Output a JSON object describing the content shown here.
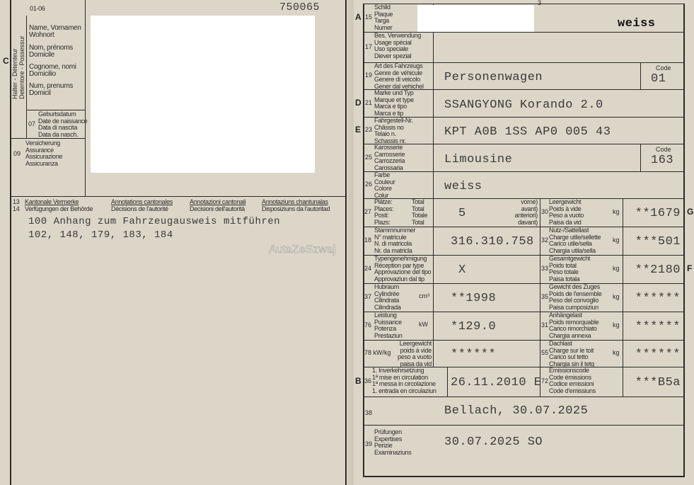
{
  "left": {
    "form_code": "01-06",
    "serial_partial": "750065",
    "holder_vertical": [
      "Halter  -  Détenteur",
      "Detentore  -  Possessur"
    ],
    "side_letter": "C",
    "holder_labels": [
      "Name, Vornamen\nWohnort",
      "Nom, prénoms\nDomicile",
      "Cognome, nomi\nDomicilio",
      "Num, prenums\nDomicil"
    ],
    "birth_num": "07",
    "birth_label": "Geburtsdatum\nDate de naissance\nData di nascita\nData da nasch.",
    "insurance_num": "09",
    "insurance_label": "Versicherung\nAssurance\nAssicurazione\nAssicuranza",
    "annotations_nums": "13\n14",
    "annotations": [
      {
        "title": "Kantonale Vermerke",
        "sub": "Verfügungen der Behörde"
      },
      {
        "title": "Annotations cantonales",
        "sub": "Décisions de l'autorité"
      },
      {
        "title": "Annotazioni cantonali",
        "sub": "Decisioni dell'autorità"
      },
      {
        "title": "Annotaziuns chantunalas",
        "sub": "Disposiziuns da l'autoritad"
      }
    ],
    "remarks": [
      "100 Anhang zum Fahrzeugausweis mitführen",
      "102, 148, 179, 183, 184"
    ],
    "watermark": "AutaZeSzwaj"
  },
  "right": {
    "page_mark": "3",
    "plate_color": "weiss",
    "code_header": "Code",
    "rows": [
      {
        "letter": "A",
        "num": "15",
        "label": "Schild\nPlaque\nTarga\nNumer",
        "value": ""
      },
      {
        "num": "17",
        "label": "Bes. Verwendung\nUsage spécial\nUso speciale\nDiever spezial",
        "value": ""
      },
      {
        "num": "19",
        "label": "Art des Fahrzeugs\nGenre de véhicule\nGenere di veicolo\nGener dal vehichel",
        "value": "Personenwagen",
        "code": "01"
      },
      {
        "letter": "D",
        "num": "21",
        "label": "Marke und Typ\nMarque et type\nMarca e tipo\nMarca e tip",
        "value": "SSANGYONG Korando 2.0"
      },
      {
        "letter": "E",
        "num": "23",
        "label": "Fahrgestell-Nr.\nChâssis no\nTelaio n.\nSchassis nr.",
        "value": "KPT A0B 1SS AP0 005 43"
      },
      {
        "num": "25",
        "label": "Karosserie\nCarrosserie\nCarrozzeria\nCarossaria",
        "value": "Limousine",
        "code": "163"
      },
      {
        "num": "26",
        "label": "Farbe\nCouleur\nColore\nColur",
        "value": "weiss"
      }
    ],
    "split_rows": [
      {
        "num": "27",
        "label": "Plätze:\nPlaces:\nPosti:\nPlazs:",
        "label2": "Total\nTotal\nTotale\nTotal",
        "value": "5",
        "extra": "vorne)\navant)\nanteriori)\ndavant)",
        "r_num": "30",
        "r_label": "Leergewicht\nPoids à vide\nPeso a vuoto\nPaisa da vid",
        "r_unit": "kg",
        "r_value": "**1679",
        "r_letter": "G"
      },
      {
        "num": "18",
        "label": "Stammnummer\nN° matricule\nN. di matricola\nNr. da matricla",
        "value": "316.310.758",
        "r_num": "32",
        "r_label": "Nutz-/Sattellast\nCharge utile/sellette\nCarico utile/sella\nChargia utila/sella",
        "r_unit": "kg",
        "r_value": "***501"
      },
      {
        "num": "24",
        "label": "Typengenehmigung\nRéception par type\nApprovazione del tipo\nApprovaziun dal tip",
        "value": "X",
        "r_num": "33",
        "r_label": "Gesamtgewicht\nPoids total\nPeso totale\nPaisa totala",
        "r_unit": "kg",
        "r_value": "**2180",
        "r_letter": "F"
      },
      {
        "num": "37",
        "label": "Hubraum\nCylindrée\nCilindrata\nCilindrada",
        "unit": "cm³",
        "value": "**1998",
        "r_num": "35",
        "r_label": "Gewicht des Zuges\nPoids de l'ensemble\nPeso del convoglio\nPaisa cumposiziun",
        "r_unit": "kg",
        "r_value": "******"
      },
      {
        "num": "76",
        "label": "Leistung\nPuissance\nPotenza\nPrestaziun",
        "unit": "kW",
        "value": "*129.0",
        "r_num": "31",
        "r_label": "Anhängelast\nPoids remorquable\nCarico rimorchiato\nChargia annexa",
        "r_unit": "kg",
        "r_value": "******"
      },
      {
        "num": "78 kW/kg",
        "label": "Leergewicht\npoids à vide\npeso a vuoto\npaisa da vid",
        "value": "******",
        "r_num": "55",
        "r_label": "Dachlast\nCharge sur le toit\nCarico sul tetto\nChargia sin il tetg",
        "r_unit": "kg",
        "r_value": "******"
      },
      {
        "letter": "B",
        "num": "36",
        "label": "1. Inverkehrsetzung\n1ª mise en circulation\n1ª messa in circolazione\n1. entrada en circulaziun",
        "value": "26.11.2010 E",
        "r_num": "72",
        "r_label": "Emissionscode\nCode émissions\nCodice emissioni\nCode d'emissiuns",
        "r_value": "***B5a"
      }
    ],
    "place_date": {
      "num": "38",
      "value": "Bellach, 30.07.2025"
    },
    "inspection": {
      "num": "39",
      "label": "Prüfungen\nExpertises\nPerizie\nExaminaziuns",
      "value": "30.07.2025 SO"
    }
  },
  "colors": {
    "paper": "#dcd6c8",
    "ink": "#2a2a2a",
    "typed": "#3a3a3a"
  }
}
